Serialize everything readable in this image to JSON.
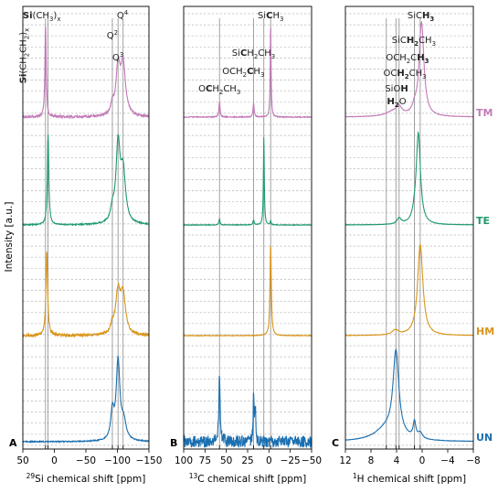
{
  "ylabel": "Intensity [a.u.]",
  "colors": {
    "TM": "#c27ab8",
    "TE": "#1f9a6c",
    "HM": "#d9951c",
    "UN": "#1a6fb0"
  },
  "traces": [
    {
      "key": "TM",
      "label": "TM"
    },
    {
      "key": "TE",
      "label": "TE"
    },
    {
      "key": "HM",
      "label": "HM"
    },
    {
      "key": "UN",
      "label": "UN"
    }
  ],
  "chart_data": [
    {
      "type": "line",
      "panel": "A",
      "xlabel_sup": "29",
      "xlabel_rest": "Si chemical shift [ppm]",
      "xlim": [
        50,
        -150
      ],
      "ticks": [
        50,
        0,
        -50,
        -100,
        -150
      ],
      "tick_labels": [
        "50",
        "0",
        "−50",
        "−100",
        "−150"
      ],
      "ref_lines": [
        14,
        10,
        -92,
        -101,
        -109
      ],
      "annotations": [
        {
          "id": "si-ch3x",
          "parts": [
            [
              "Si",
              "b"
            ],
            [
              "(CH",
              "n"
            ],
            [
              "3",
              "sub"
            ],
            [
              ")",
              "n"
            ],
            [
              "x",
              "sub"
            ]
          ]
        },
        {
          "id": "si-ch2ch2x",
          "parts": [
            [
              "Si",
              "b"
            ],
            [
              "(CH",
              "n"
            ],
            [
              "2",
              "sub"
            ],
            [
              "CH",
              "n"
            ],
            [
              "2",
              "sub"
            ],
            [
              ")",
              "n"
            ],
            [
              "x",
              "sub"
            ]
          ]
        },
        {
          "id": "q2",
          "parts": [
            [
              "Q",
              "n"
            ],
            [
              "2",
              "sup"
            ]
          ]
        },
        {
          "id": "q3",
          "parts": [
            [
              "Q",
              "n"
            ],
            [
              "3",
              "sup"
            ]
          ]
        },
        {
          "id": "q4",
          "parts": [
            [
              "Q",
              "n"
            ],
            [
              "4",
              "sup"
            ]
          ]
        }
      ],
      "series": [
        {
          "name": "TM",
          "noise": 0.012,
          "peaks": [
            [
              14,
              0.95,
              1.2
            ],
            [
              -101,
              0.46,
              4.0
            ],
            [
              -109,
              0.52,
              4.5
            ],
            [
              -92,
              0.1,
              3.0
            ]
          ]
        },
        {
          "name": "TE",
          "noise": 0.006,
          "peaks": [
            [
              10,
              0.92,
              1.4
            ],
            [
              -101,
              0.78,
              4.0
            ],
            [
              -109,
              0.5,
              4.5
            ],
            [
              -92,
              0.12,
              3.0
            ]
          ]
        },
        {
          "name": "HM",
          "noise": 0.014,
          "peaks": [
            [
              12,
              0.86,
              1.6
            ],
            [
              -101,
              0.42,
              4.5
            ],
            [
              -109,
              0.38,
              4.5
            ],
            [
              -92,
              0.08,
              3.0
            ]
          ]
        },
        {
          "name": "UN",
          "noise": 0.006,
          "peaks": [
            [
              -92,
              0.28,
              3.0
            ],
            [
              -101,
              0.8,
              3.5
            ],
            [
              -110,
              0.18,
              4.5
            ]
          ]
        }
      ]
    },
    {
      "type": "line",
      "panel": "B",
      "xlabel_sup": "13",
      "xlabel_rest": "C chemical shift [ppm]",
      "xlim": [
        100,
        -50
      ],
      "ticks": [
        100,
        75,
        50,
        25,
        0,
        -25,
        -50
      ],
      "tick_labels": [
        "100",
        "75",
        "50",
        "25",
        "0",
        "−25",
        "−50"
      ],
      "ref_lines": [
        58,
        18,
        6,
        -2
      ],
      "annotations": [
        {
          "id": "sich3",
          "parts": [
            [
              "Si",
              "n"
            ],
            [
              "C",
              "b"
            ],
            [
              "H",
              "n"
            ],
            [
              "3",
              "sub"
            ]
          ]
        },
        {
          "id": "sich2ch3",
          "parts": [
            [
              "Si",
              "n"
            ],
            [
              "C",
              "b"
            ],
            [
              "H",
              "n"
            ],
            [
              "2",
              "sub"
            ],
            [
              "CH",
              "n"
            ],
            [
              "3",
              "sub"
            ]
          ]
        },
        {
          "id": "och2ch3",
          "parts": [
            [
              "OCH",
              "n"
            ],
            [
              "2",
              "sub"
            ],
            [
              "C",
              "b"
            ],
            [
              "H",
              "n"
            ],
            [
              "3",
              "sub"
            ]
          ]
        },
        {
          "id": "och2ch3-c1",
          "parts": [
            [
              "O",
              "n"
            ],
            [
              "C",
              "b"
            ],
            [
              "H",
              "n"
            ],
            [
              "2",
              "sub"
            ],
            [
              "CH",
              "n"
            ],
            [
              "3",
              "sub"
            ]
          ]
        }
      ],
      "series": [
        {
          "name": "TM",
          "noise": 0.005,
          "peaks": [
            [
              58,
              0.16,
              0.8
            ],
            [
              18,
              0.14,
              0.8
            ],
            [
              -2,
              0.95,
              0.6
            ]
          ]
        },
        {
          "name": "TE",
          "noise": 0.003,
          "peaks": [
            [
              58,
              0.06,
              0.8
            ],
            [
              18,
              0.05,
              0.8
            ],
            [
              6,
              0.9,
              0.6
            ],
            [
              -2,
              0.04,
              0.6
            ]
          ]
        },
        {
          "name": "HM",
          "noise": 0.003,
          "peaks": [
            [
              -2,
              0.93,
              0.9
            ]
          ]
        },
        {
          "name": "UN",
          "noise": 0.06,
          "peaks": [
            [
              58,
              0.66,
              0.9
            ],
            [
              18,
              0.5,
              0.6
            ],
            [
              16,
              0.36,
              0.6
            ]
          ]
        }
      ]
    },
    {
      "type": "line",
      "panel": "C",
      "xlabel_sup": "1",
      "xlabel_rest": "H chemical shift [ppm]",
      "xlim": [
        12,
        -8
      ],
      "ticks": [
        12,
        8,
        4,
        0,
        -4,
        -8
      ],
      "tick_labels": [
        "12",
        "8",
        "4",
        "0",
        "−4",
        "−8"
      ],
      "ref_lines": [
        5.6,
        4.1,
        3.6,
        1.2,
        0.3
      ],
      "annotations": [
        {
          "id": "sich3-h",
          "parts": [
            [
              "SiC",
              "n"
            ],
            [
              "H",
              "b"
            ],
            [
              "3",
              "subb"
            ]
          ]
        },
        {
          "id": "sich2ch3-h",
          "parts": [
            [
              "SiC",
              "n"
            ],
            [
              "H",
              "b"
            ],
            [
              "2",
              "subb"
            ],
            [
              "CH",
              "n"
            ],
            [
              "3",
              "sub"
            ]
          ]
        },
        {
          "id": "och2ch3-h",
          "parts": [
            [
              "OCH",
              "n"
            ],
            [
              "2",
              "sub"
            ],
            [
              "C",
              "n"
            ],
            [
              "H",
              "b"
            ],
            [
              "3",
              "subb"
            ]
          ]
        },
        {
          "id": "och2ch3-h2",
          "parts": [
            [
              "OC",
              "n"
            ],
            [
              "H",
              "b"
            ],
            [
              "2",
              "subb"
            ],
            [
              "CH",
              "n"
            ],
            [
              "3",
              "sub"
            ]
          ]
        },
        {
          "id": "sioh",
          "parts": [
            [
              "SiO",
              "n"
            ],
            [
              "H",
              "b"
            ]
          ]
        },
        {
          "id": "h2o",
          "parts": [
            [
              "H",
              "b"
            ],
            [
              "2",
              "subb"
            ],
            [
              "O",
              "n"
            ]
          ]
        }
      ],
      "series": [
        {
          "name": "TM",
          "noise": 0.002,
          "peaks": [
            [
              0.1,
              0.95,
              0.45
            ],
            [
              3.6,
              0.07,
              0.5
            ],
            [
              1.2,
              0.06,
              0.4
            ],
            [
              4.5,
              0.05,
              1.4
            ]
          ]
        },
        {
          "name": "TE",
          "noise": 0.002,
          "peaks": [
            [
              0.6,
              0.92,
              0.4
            ],
            [
              3.6,
              0.06,
              0.4
            ],
            [
              1.2,
              0.05,
              0.35
            ]
          ]
        },
        {
          "name": "HM",
          "noise": 0.002,
          "peaks": [
            [
              0.3,
              0.92,
              0.5
            ],
            [
              4.2,
              0.05,
              0.6
            ]
          ]
        },
        {
          "name": "UN",
          "noise": 0.002,
          "peaks": [
            [
              4.1,
              0.85,
              0.55
            ],
            [
              5.6,
              0.12,
              2.2
            ],
            [
              1.2,
              0.16,
              0.25
            ],
            [
              0.3,
              0.06,
              0.4
            ]
          ]
        }
      ]
    }
  ]
}
